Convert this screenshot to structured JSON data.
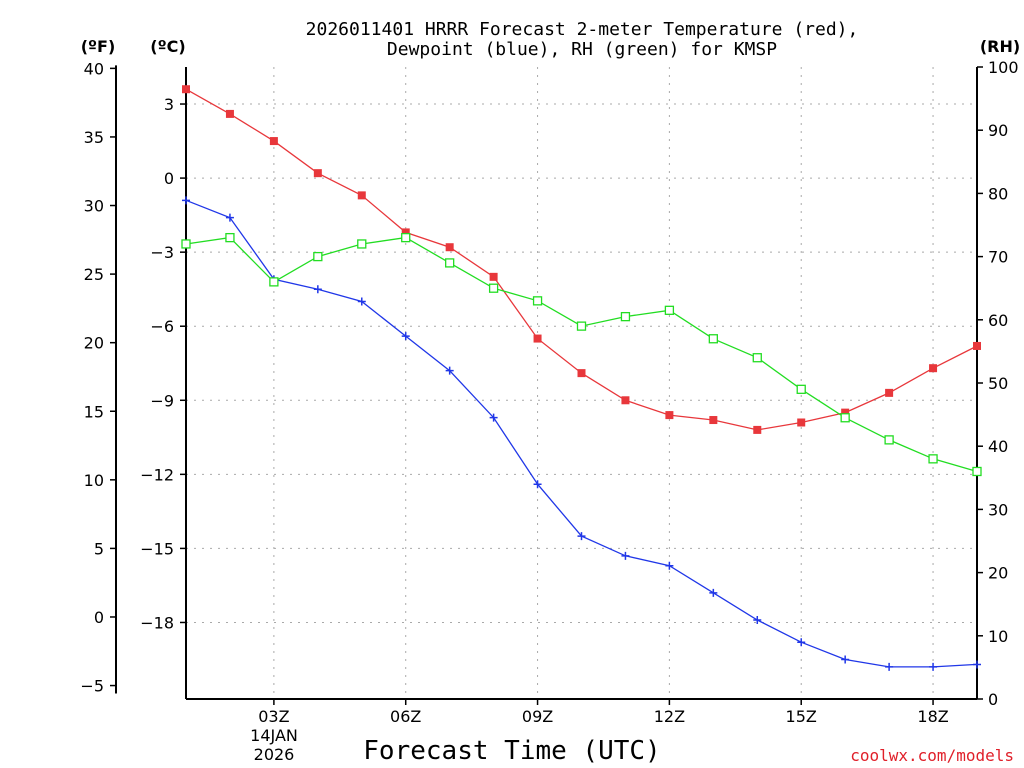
{
  "chart_data": {
    "type": "line",
    "title_line1": "2026011401 HRRR Forecast 2-meter Temperature (red),",
    "title_line2": "Dewpoint (blue), RH (green) for KMSP",
    "xlabel": "Forecast Time (UTC)",
    "credit": "coolwx.com/models",
    "unit_f": "(ºF)",
    "unit_c": "(ºC)",
    "unit_rh": "(RH)",
    "date_day": "14JAN",
    "date_year": "2026",
    "x_range_hours": [
      1,
      19
    ],
    "x_ticks": [
      {
        "hour": 3,
        "label": "03Z"
      },
      {
        "hour": 6,
        "label": "06Z"
      },
      {
        "hour": 9,
        "label": "09Z"
      },
      {
        "hour": 12,
        "label": "12Z"
      },
      {
        "hour": 15,
        "label": "15Z"
      },
      {
        "hour": 18,
        "label": "18Z"
      }
    ],
    "f_ticks": [
      40,
      35,
      30,
      25,
      20,
      15,
      10,
      5,
      0,
      -5
    ],
    "c_ticks": [
      3,
      0,
      -3,
      -6,
      -9,
      -12,
      -15,
      -18
    ],
    "rh_ticks": [
      100,
      90,
      80,
      70,
      60,
      50,
      40,
      30,
      20,
      10,
      0
    ],
    "c_range": [
      -21.1,
      4.5
    ],
    "rh_range": [
      0,
      100
    ],
    "hours": [
      1,
      2,
      3,
      4,
      5,
      6,
      7,
      8,
      9,
      10,
      11,
      12,
      13,
      14,
      15,
      16,
      17,
      18,
      19
    ],
    "series": [
      {
        "name": "Temperature",
        "unit": "C",
        "color": "#e8373b",
        "marker": "filled-square",
        "values": [
          3.6,
          2.6,
          1.5,
          0.2,
          -0.7,
          -2.2,
          -2.8,
          -4.0,
          -6.5,
          -7.9,
          -9.0,
          -9.6,
          -9.8,
          -10.2,
          -9.9,
          -9.5,
          -8.7,
          -7.7,
          -6.8
        ]
      },
      {
        "name": "Dewpoint",
        "unit": "C",
        "color": "#2037e8",
        "marker": "plus",
        "values": [
          -0.9,
          -1.6,
          -4.1,
          -4.5,
          -5.0,
          -6.4,
          -7.8,
          -9.7,
          -12.4,
          -14.5,
          -15.3,
          -15.7,
          -16.8,
          -17.9,
          -18.8,
          -19.5,
          -19.8,
          -19.8,
          -19.7
        ]
      },
      {
        "name": "RH",
        "unit": "%",
        "color": "#22dd22",
        "marker": "open-square",
        "values": [
          72,
          73,
          66,
          70,
          72,
          73,
          69,
          65,
          63,
          59,
          60.5,
          61.5,
          57,
          54,
          49,
          44.5,
          41,
          38,
          36
        ]
      }
    ]
  }
}
